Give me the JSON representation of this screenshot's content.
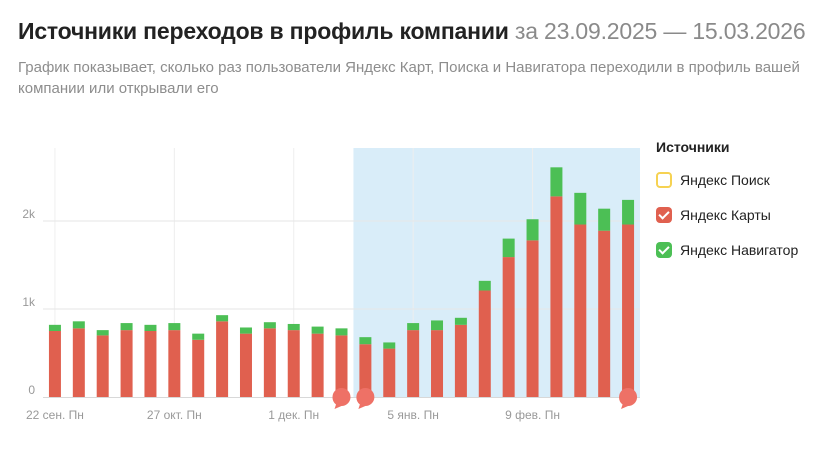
{
  "header": {
    "title": "Источники переходов в профиль компании",
    "range": "за 23.09.2025 — 15.03.2026",
    "subtitle": "График показывает, сколько раз пользователи Яндекс Карт, Поиска и Навигатора переходили в профиль вашей компании или открывали его"
  },
  "legend": {
    "title": "Источники",
    "items": [
      {
        "label": "Яндекс Поиск",
        "color": "#f6d252",
        "checked": false
      },
      {
        "label": "Яндекс Карты",
        "color": "#e0604f",
        "checked": true
      },
      {
        "label": "Яндекс Навигатор",
        "color": "#4cbf55",
        "checked": true
      }
    ]
  },
  "chart_data": {
    "type": "bar",
    "stacked": true,
    "title": "",
    "xlabel": "",
    "ylabel": "",
    "ylim": [
      0,
      2800
    ],
    "y_ticks": [
      {
        "value": 0,
        "label": "0"
      },
      {
        "value": 1000,
        "label": "1k"
      },
      {
        "value": 2000,
        "label": "2k"
      }
    ],
    "categories": [
      "2025-09-22",
      "2025-09-29",
      "2025-10-06",
      "2025-10-13",
      "2025-10-20",
      "2025-10-27",
      "2025-11-03",
      "2025-11-10",
      "2025-11-17",
      "2025-11-24",
      "2025-12-01",
      "2025-12-08",
      "2025-12-15",
      "2025-12-22",
      "2025-12-29",
      "2026-01-05",
      "2026-01-12",
      "2026-01-19",
      "2026-01-26",
      "2026-02-02",
      "2026-02-09",
      "2026-02-16",
      "2026-02-23",
      "2026-03-02",
      "2026-03-09"
    ],
    "x_tick_labels": [
      {
        "index": 0,
        "label": "22 сен. Пн"
      },
      {
        "index": 5,
        "label": "27 окт. Пн"
      },
      {
        "index": 10,
        "label": "1 дек. Пн"
      },
      {
        "index": 15,
        "label": "5 янв. Пн"
      },
      {
        "index": 20,
        "label": "9 фев. Пн"
      }
    ],
    "series": [
      {
        "name": "Яндекс Поиск",
        "color": "#f6d252",
        "values": [
          0,
          0,
          0,
          0,
          0,
          0,
          0,
          0,
          0,
          0,
          0,
          0,
          0,
          0,
          0,
          0,
          0,
          0,
          0,
          0,
          0,
          0,
          0,
          0,
          0
        ]
      },
      {
        "name": "Яндекс Карты",
        "color": "#e0604f",
        "values": [
          750,
          780,
          700,
          760,
          750,
          760,
          650,
          860,
          720,
          780,
          760,
          720,
          700,
          600,
          550,
          760,
          760,
          820,
          1210,
          1590,
          1780,
          2280,
          1960,
          1890,
          1960
        ]
      },
      {
        "name": "Яндекс Навигатор",
        "color": "#4cbf55",
        "values": [
          70,
          80,
          60,
          80,
          70,
          80,
          70,
          70,
          70,
          70,
          70,
          80,
          80,
          80,
          70,
          80,
          110,
          80,
          110,
          210,
          240,
          330,
          360,
          250,
          280
        ]
      }
    ],
    "highlight_range": [
      13,
      24
    ],
    "highlight_color": "#d9edf9",
    "markers_at": [
      12,
      13,
      24
    ],
    "marker_color": "#ee7166",
    "grid": true,
    "legend_position": "right"
  }
}
